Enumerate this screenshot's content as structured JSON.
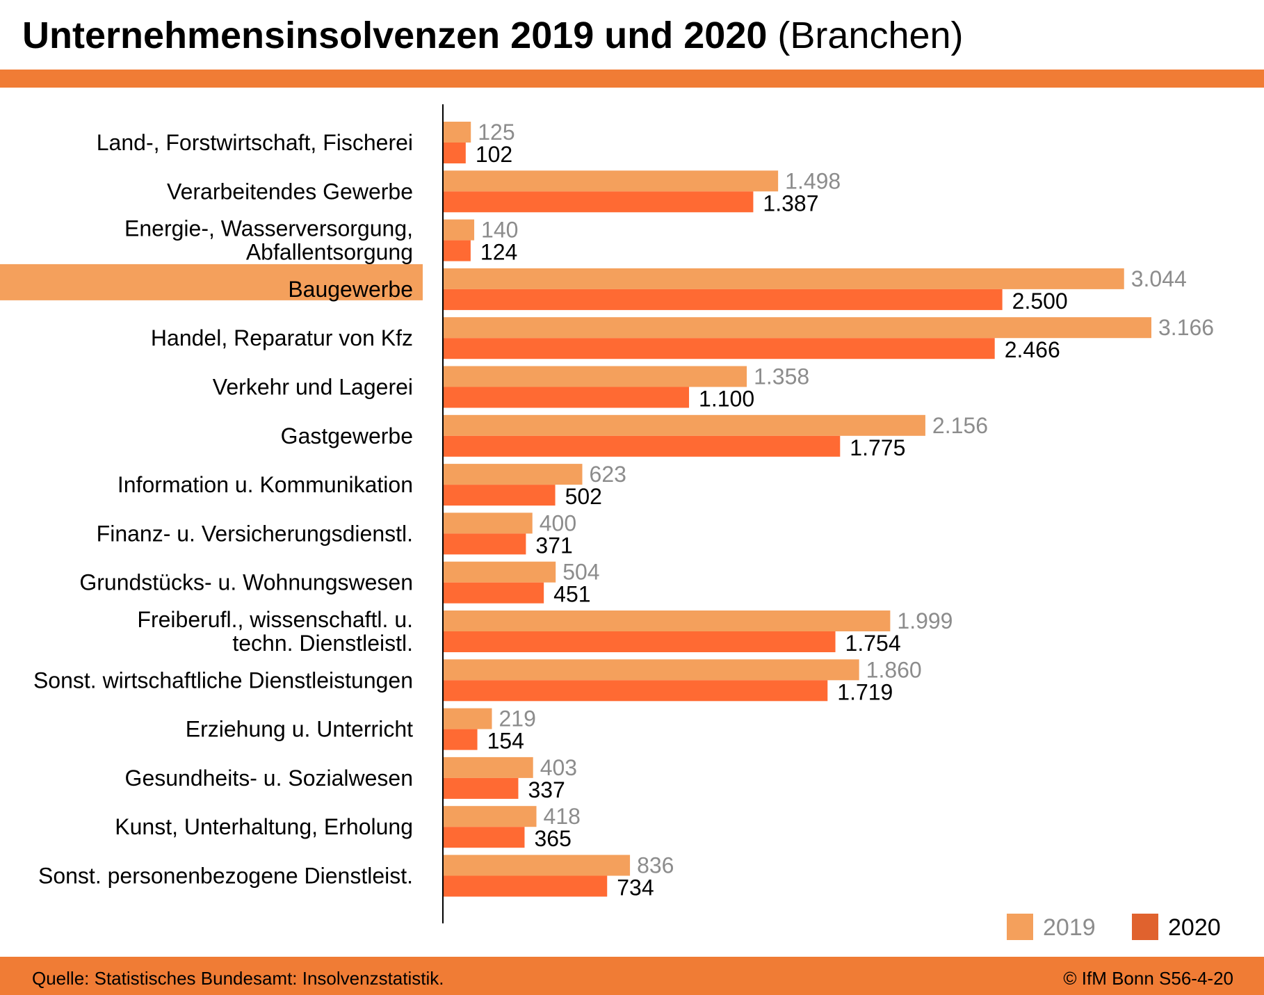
{
  "title": {
    "bold": "Unternehmensinsolvenzen 2019 und 2020",
    "normal": " (Branchen)"
  },
  "colors": {
    "accent": "#f07c35",
    "series_2019": "#f4a05c",
    "series_2020": "#ff6a33",
    "highlight": "#f4a05c"
  },
  "chart_data": {
    "type": "bar",
    "orientation": "horizontal",
    "title": "Unternehmensinsolvenzen 2019 und 2020 (Branchen)",
    "categories": [
      [
        "Land-, Forstwirtschaft, Fischerei"
      ],
      [
        "Verarbeitendes Gewerbe"
      ],
      [
        "Energie-, Wasserversorgung,",
        "Abfallentsorgung"
      ],
      [
        "Baugewerbe"
      ],
      [
        "Handel, Reparatur von Kfz"
      ],
      [
        "Verkehr und Lagerei"
      ],
      [
        "Gastgewerbe"
      ],
      [
        "Information u. Kommunikation"
      ],
      [
        "Finanz- u. Versicherungsdienstl."
      ],
      [
        "Grundstücks- u. Wohnungswesen"
      ],
      [
        "Freiberufl., wissenschaftl. u.",
        "techn. Dienstleistl."
      ],
      [
        "Sonst. wirtschaftliche Dienstleistungen"
      ],
      [
        "Erziehung u. Unterricht"
      ],
      [
        "Gesundheits- u. Sozialwesen"
      ],
      [
        "Kunst, Unterhaltung, Erholung"
      ],
      [
        "Sonst. personenbezogene Dienstleist."
      ]
    ],
    "highlighted_category": "Baugewerbe",
    "series": [
      {
        "name": "2019",
        "values": [
          125,
          1498,
          140,
          3044,
          3166,
          1358,
          2156,
          623,
          400,
          504,
          1999,
          1860,
          219,
          403,
          418,
          836
        ],
        "labels": [
          "125",
          "1.498",
          "140",
          "3.044",
          "3.166",
          "1.358",
          "2.156",
          "623",
          "400",
          "504",
          "1.999",
          "1.860",
          "219",
          "403",
          "418",
          "836"
        ]
      },
      {
        "name": "2020",
        "values": [
          102,
          1387,
          124,
          2500,
          2466,
          1100,
          1775,
          502,
          371,
          451,
          1754,
          1719,
          154,
          337,
          365,
          734
        ],
        "labels": [
          "102",
          "1.387",
          "124",
          "2.500",
          "2.466",
          "1.100",
          "1.775",
          "502",
          "371",
          "451",
          "1.754",
          "1.719",
          "154",
          "337",
          "365",
          "734"
        ]
      }
    ],
    "xlim": [
      0,
      3200
    ],
    "legend": [
      "2019",
      "2020"
    ],
    "legend_position": "bottom-right",
    "grid": false
  },
  "footer": {
    "source": "Quelle: Statistisches Bundesamt: Insolvenzstatistik.",
    "credit": "© IfM Bonn  S56-4-20"
  }
}
